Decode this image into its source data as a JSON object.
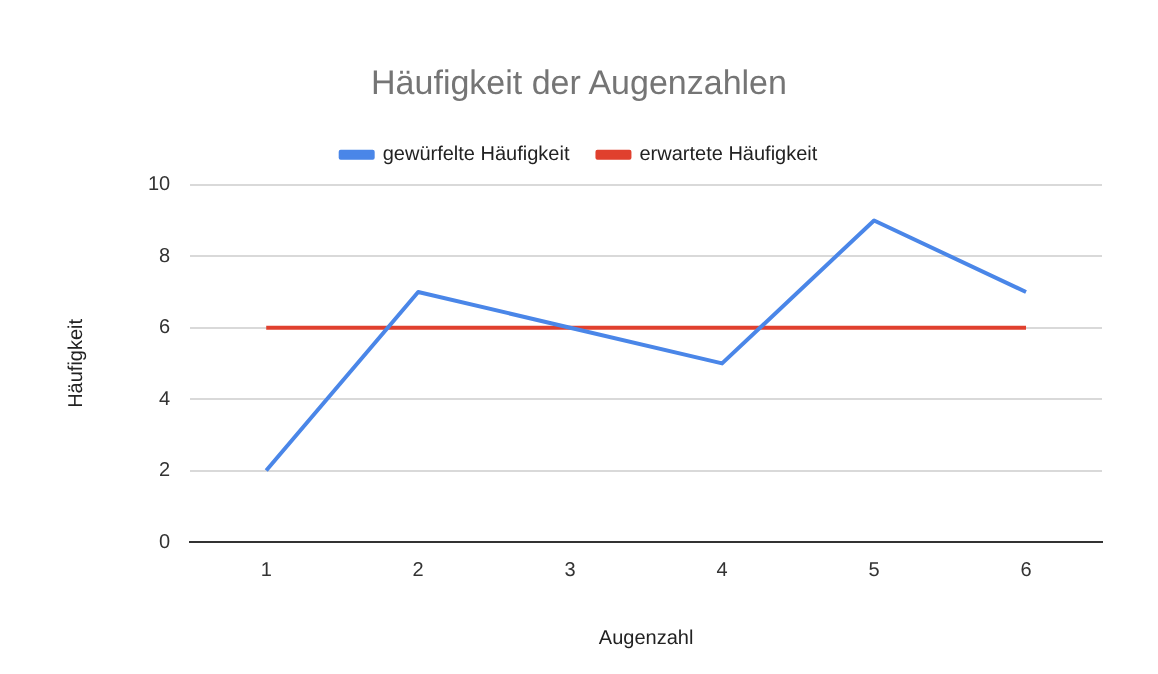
{
  "chart_data": {
    "type": "line",
    "title": "Häufigkeit der Augenzahlen",
    "xlabel": "Augenzahl",
    "ylabel": "Häufigkeit",
    "categories": [
      "1",
      "2",
      "3",
      "4",
      "5",
      "6"
    ],
    "series": [
      {
        "name": "gewürfelte Häufigkeit",
        "color": "#4a86e8",
        "values": [
          2,
          7,
          6,
          5,
          9,
          7
        ]
      },
      {
        "name": "erwartete Häufigkeit",
        "color": "#e0402e",
        "values": [
          6,
          6,
          6,
          6,
          6,
          6
        ]
      }
    ],
    "ylim": [
      0,
      10
    ],
    "yticks": [
      0,
      2,
      4,
      6,
      8,
      10
    ],
    "grid": "y",
    "legend": "top",
    "marker": "none",
    "line_style": "solid"
  }
}
